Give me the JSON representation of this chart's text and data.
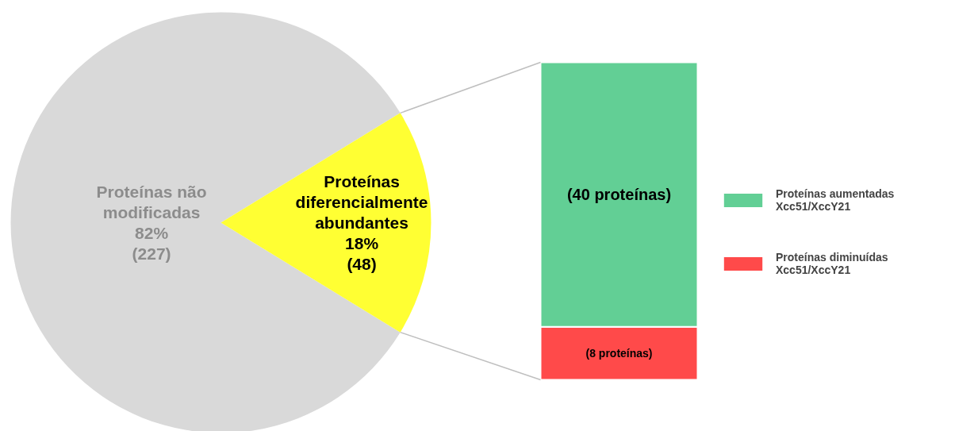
{
  "chart_data": [
    {
      "type": "pie",
      "categories": [
        "Proteínas não modificadas",
        "Proteínas diferencialmente abundantes"
      ],
      "values": [
        227,
        48
      ],
      "colors": [
        "#d9d9d9",
        "#ffff33"
      ],
      "value_labels": [
        "82% (227)",
        "18% (48)"
      ]
    },
    {
      "type": "bar",
      "stacked": true,
      "categories": [
        null
      ],
      "series": [
        {
          "name": "Proteínas diminuídas Xcc51/XccY21",
          "color": "#ff4a4a",
          "values": [
            8
          ],
          "value_labels": [
            "(8 proteínas)"
          ]
        },
        {
          "name": "Proteínas aumentadas Xcc51/XccY21",
          "color": "#62cf95",
          "values": [
            40
          ],
          "value_labels": [
            "(40 proteínas)"
          ]
        }
      ],
      "legend": "right"
    }
  ]
}
